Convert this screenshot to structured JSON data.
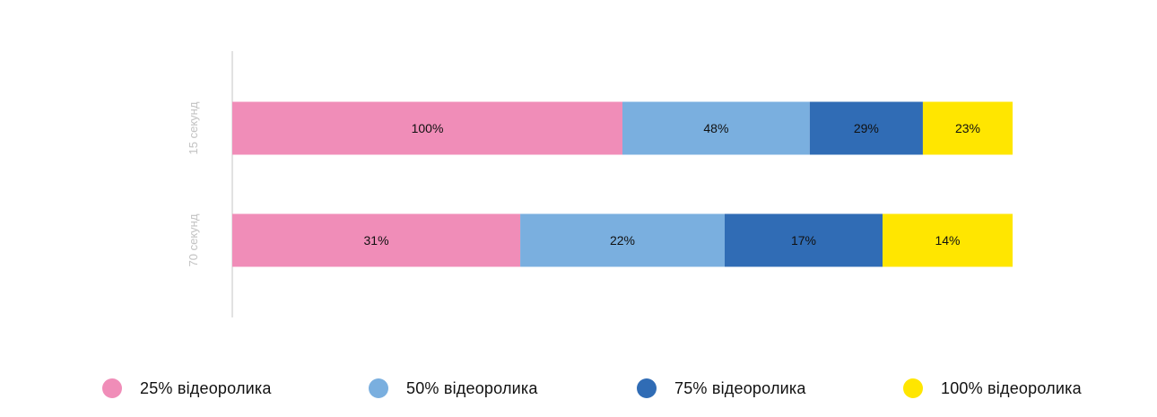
{
  "chart_data": {
    "type": "bar",
    "orientation": "horizontal",
    "stacked": true,
    "grid": false,
    "legend_position": "bottom",
    "categories": [
      "15 секунд",
      "70 секунд"
    ],
    "series": [
      {
        "name": "25% відеоролика",
        "color": "#f08db8",
        "values": [
          100,
          31
        ],
        "labels": [
          "100%",
          "31%"
        ]
      },
      {
        "name": "50% відеоролика",
        "color": "#7aafdf",
        "values": [
          48,
          22
        ],
        "labels": [
          "48%",
          "22%"
        ]
      },
      {
        "name": "75% відеоролика",
        "color": "#306cb5",
        "values": [
          29,
          17
        ],
        "labels": [
          "29%",
          "17%"
        ]
      },
      {
        "name": "100% відеоролика",
        "color": "#ffe600",
        "values": [
          23,
          14
        ],
        "labels": [
          "23%",
          "14%"
        ]
      }
    ],
    "axis_color": "#d9d9d9",
    "category_label_color": "#c2c2c2",
    "value_label_color": "#111111"
  }
}
